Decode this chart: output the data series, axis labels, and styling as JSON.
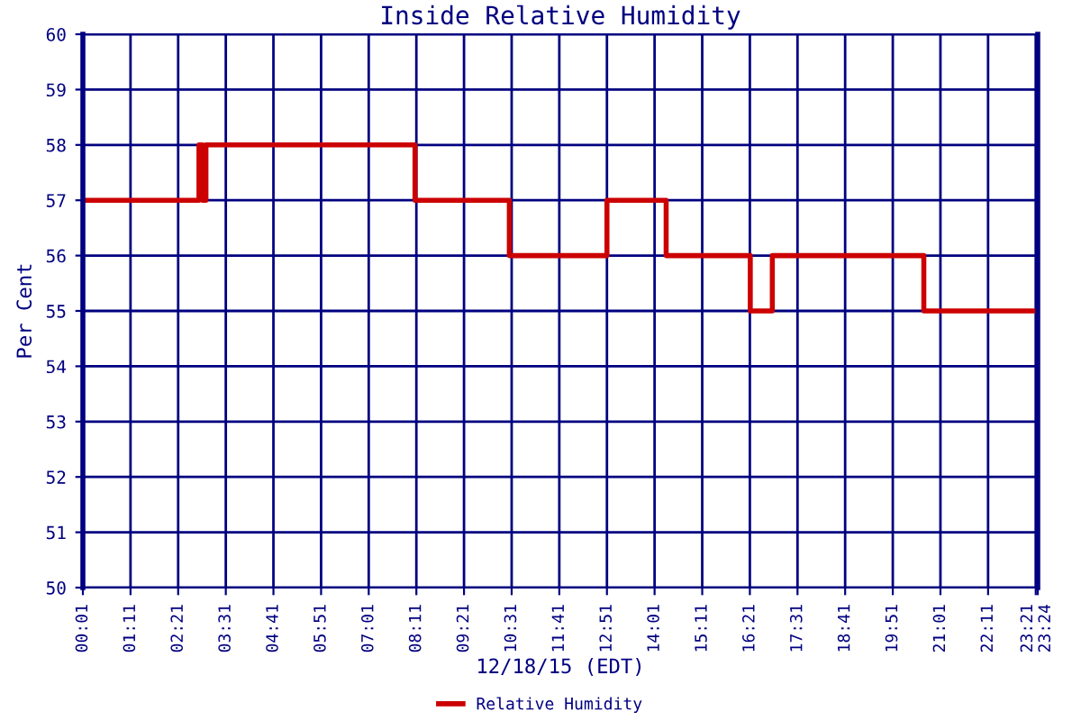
{
  "chart_data": {
    "type": "step",
    "title": "Inside Relative Humidity",
    "xlabel": "12/18/15 (EDT)",
    "ylabel": "Per Cent",
    "series": [
      {
        "name": "Relative Humidity",
        "color": "#cc0000",
        "x": [
          0.0167,
          2.86,
          2.95,
          3.03,
          8.15,
          10.46,
          12.85,
          14.3,
          16.36,
          16.9,
          20.61,
          23.4
        ],
        "values": [
          57,
          58,
          57,
          58,
          57,
          56,
          57,
          56,
          55,
          56,
          55,
          55
        ]
      }
    ],
    "xlim": [
      0.0167,
      23.4
    ],
    "xticks": [
      {
        "value": 0.0167,
        "label": "00:01"
      },
      {
        "value": 1.1833,
        "label": "01:11"
      },
      {
        "value": 2.35,
        "label": "02:21"
      },
      {
        "value": 3.5167,
        "label": "03:31"
      },
      {
        "value": 4.6833,
        "label": "04:41"
      },
      {
        "value": 5.85,
        "label": "05:51"
      },
      {
        "value": 7.0167,
        "label": "07:01"
      },
      {
        "value": 8.1833,
        "label": "08:11"
      },
      {
        "value": 9.35,
        "label": "09:21"
      },
      {
        "value": 10.5167,
        "label": "10:31"
      },
      {
        "value": 11.6833,
        "label": "11:41"
      },
      {
        "value": 12.85,
        "label": "12:51"
      },
      {
        "value": 14.0167,
        "label": "14:01"
      },
      {
        "value": 15.1833,
        "label": "15:11"
      },
      {
        "value": 16.35,
        "label": "16:21"
      },
      {
        "value": 17.5167,
        "label": "17:31"
      },
      {
        "value": 18.6833,
        "label": "18:41"
      },
      {
        "value": 19.85,
        "label": "19:51"
      },
      {
        "value": 21.0167,
        "label": "21:01"
      },
      {
        "value": 22.1833,
        "label": "22:11"
      },
      {
        "value": 23.35,
        "label": "23:21"
      },
      {
        "value": 23.4,
        "label": "23:24"
      }
    ],
    "ylim": [
      50,
      60
    ],
    "yticks": [
      50,
      51,
      52,
      53,
      54,
      55,
      56,
      57,
      58,
      59,
      60
    ],
    "grid": true,
    "legend": "bottom",
    "line_style": "solid",
    "marker": "none"
  }
}
